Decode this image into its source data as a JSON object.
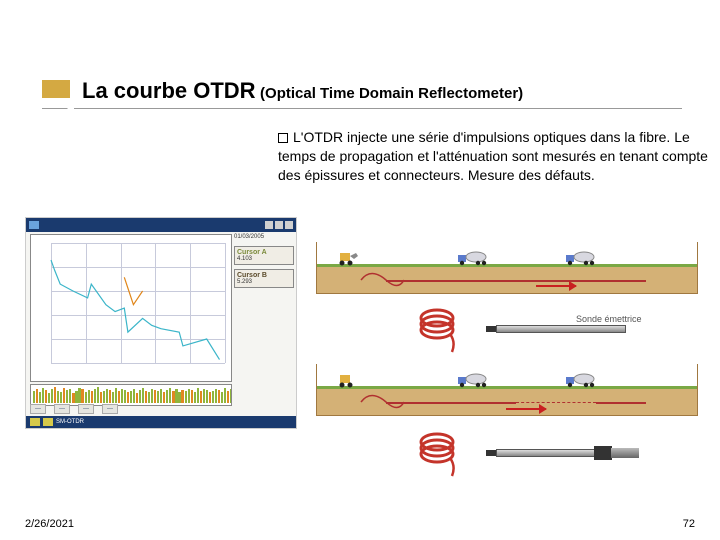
{
  "title": {
    "main": "La courbe OTDR",
    "sub": "(Optical Time Domain Reflectometer)",
    "accent_color": "#d4a942",
    "underline_color": "#999999",
    "fontsize_main": 22,
    "fontsize_sub": 15
  },
  "bullet": {
    "text": "L'OTDR injecte une série d'impulsions optiques dans la fibre. Le temps de propagation et l'atténuation sont mesurés en tenant compte des épissures et connecteurs. Mesure des défauts.",
    "fontsize": 14
  },
  "otdr": {
    "titlebar_color": "#1a3a6e",
    "panel_bg": "#f5f5f2",
    "grid_color": "#c7cadb",
    "plot_bg": "#ffffff",
    "trace_main_color": "#3bb5c9",
    "trace_secondary_color": "#e0861a",
    "bar_colors": [
      "#8fb53b",
      "#e08820",
      "#8fb53b"
    ],
    "trace": {
      "type": "line",
      "xlim": [
        0,
        9.5
      ],
      "ylim": [
        0,
        35
      ],
      "points_main": [
        [
          0,
          5
        ],
        [
          0.2,
          8
        ],
        [
          0.5,
          12
        ],
        [
          1.2,
          14
        ],
        [
          2.0,
          16
        ],
        [
          2.2,
          12
        ],
        [
          3.0,
          18
        ],
        [
          3.5,
          20
        ],
        [
          4.0,
          19
        ],
        [
          4.2,
          26
        ],
        [
          5.0,
          22
        ],
        [
          5.5,
          24
        ],
        [
          6.0,
          25
        ],
        [
          7.0,
          26
        ],
        [
          7.2,
          30
        ],
        [
          8.5,
          28
        ],
        [
          9.2,
          34
        ]
      ],
      "points_secondary": [
        [
          4.0,
          10
        ],
        [
          4.5,
          18
        ],
        [
          5.0,
          14
        ]
      ]
    },
    "sidebar": {
      "date": "01/03/2005",
      "cursor_a_label": "Cursor A",
      "cursor_b_label": "Cursor B",
      "cursor_a_color": "#7a8a3a",
      "cursor_b_color": "#5a4a2a",
      "val_a": "4.103",
      "val_b": "5.293"
    },
    "statusbar": {
      "btn_color": "#d6c94a",
      "text": "SM-OTDR"
    },
    "bargraph": {
      "values": [
        12,
        14,
        11,
        15,
        13,
        10,
        14,
        16,
        12,
        11,
        15,
        13,
        14,
        10,
        12,
        15,
        14,
        11,
        13,
        12,
        14,
        16,
        11,
        12,
        14,
        13,
        11,
        15,
        12,
        14,
        13,
        11,
        12,
        14,
        10,
        13,
        15,
        12,
        11,
        14,
        13,
        12,
        14,
        11,
        13,
        15,
        12,
        14,
        11,
        13,
        12,
        14,
        13,
        11,
        15,
        12,
        14,
        13,
        11,
        12,
        14,
        13,
        11,
        15,
        12,
        14
      ]
    }
  },
  "diagram": {
    "ground_soil_color": "#d4b176",
    "ground_grass_color": "#7aa845",
    "ground_border_color": "#a07840",
    "fiber_color": "#b03030",
    "arrow_color": "#c92020",
    "coil_color": "#c4342a",
    "vehicle_colors": {
      "cab": "#5a7acc",
      "body": "#cccccc",
      "wheel": "#222222",
      "mixer": "#d8d8e0"
    },
    "sonde_label": "Sonde émettrice",
    "sonde_label_color": "#555555",
    "probe_colors": {
      "body_light": "#dddddd",
      "body_dark": "#888888",
      "tip": "#333333"
    }
  },
  "footer": {
    "date": "2/26/2021",
    "page": "72",
    "fontsize": 11
  }
}
